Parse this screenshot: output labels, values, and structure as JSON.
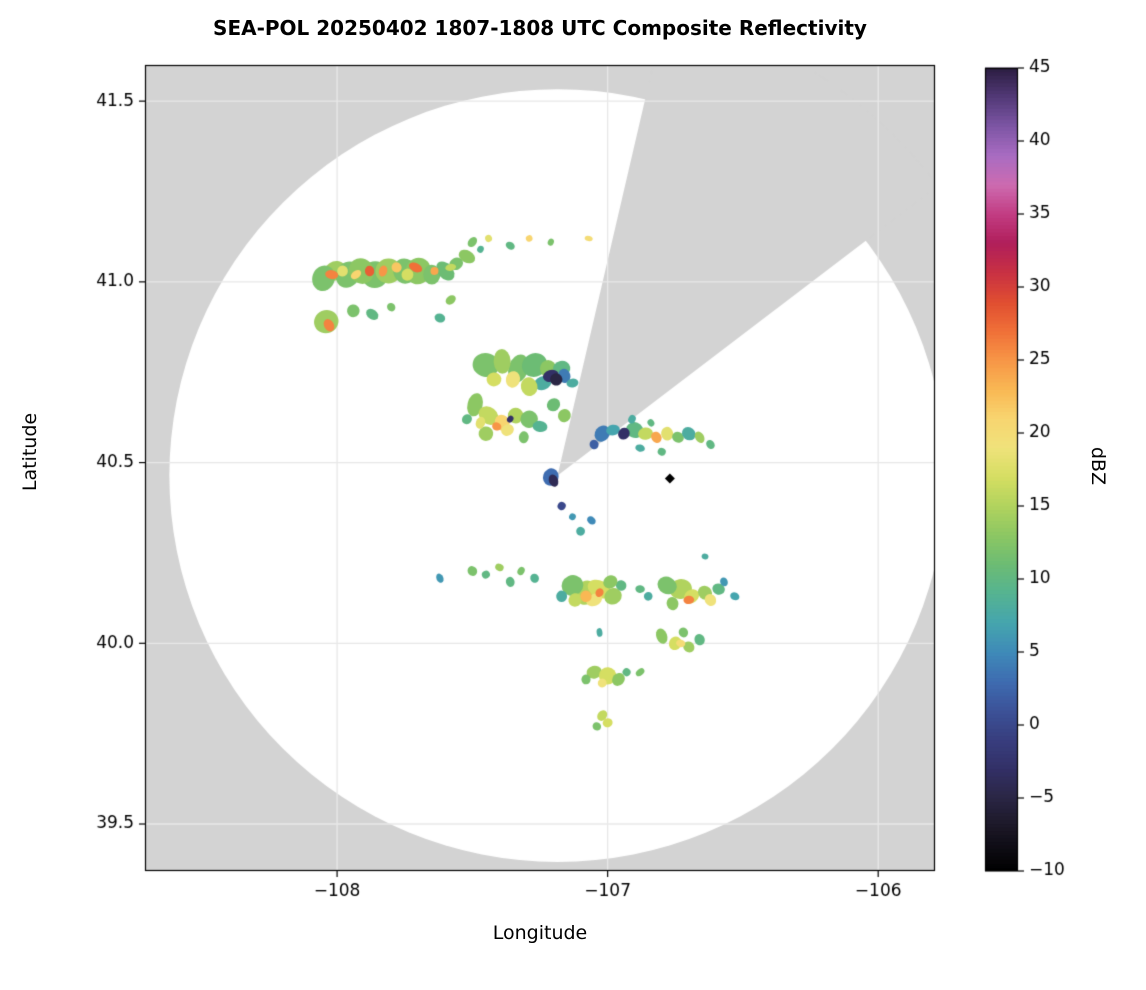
{
  "chart_data": {
    "type": "heatmap",
    "title": "SEA-POL 20250402 1807-1808 UTC Composite Reflectivity",
    "xlabel": "Longitude",
    "ylabel": "Latitude",
    "xlim": [
      -108.71,
      -105.79
    ],
    "ylim": [
      39.37,
      41.6
    ],
    "xticks": [
      -108,
      -107,
      -106
    ],
    "yticks": [
      39.5,
      40.0,
      40.5,
      41.0,
      41.5
    ],
    "grid": true,
    "background_outside_scan": "#d3d3d3",
    "scan_area_color": "#ffffff",
    "grid_color": "#e8e8e8",
    "radar": {
      "center_lon": -107.185,
      "center_lat": 40.464,
      "radius_lon_deg": 1.435,
      "radius_lat_deg": 1.069,
      "blocked_sector_screen_deg": [
        -76.9,
        -37.3
      ]
    },
    "colorbar": {
      "label": "dBZ",
      "min": -10,
      "max": 45,
      "ticks": [
        -10,
        -5,
        0,
        5,
        10,
        15,
        20,
        25,
        30,
        35,
        40,
        45
      ]
    },
    "colormap_stops": [
      [
        -10,
        "#000000"
      ],
      [
        -7,
        "#1b1726"
      ],
      [
        -5,
        "#2a2644"
      ],
      [
        -3,
        "#333066"
      ],
      [
        -1,
        "#383e7e"
      ],
      [
        1,
        "#3c5298"
      ],
      [
        3,
        "#3e6cb0"
      ],
      [
        5,
        "#3f8ab8"
      ],
      [
        7,
        "#45a5ae"
      ],
      [
        9,
        "#55b392"
      ],
      [
        11,
        "#6cbc74"
      ],
      [
        13,
        "#8cc763"
      ],
      [
        15,
        "#b1d35e"
      ],
      [
        17,
        "#d5de62"
      ],
      [
        19,
        "#efe27b"
      ],
      [
        21,
        "#f8d570"
      ],
      [
        23,
        "#f9b854"
      ],
      [
        25,
        "#f79647"
      ],
      [
        27,
        "#f07038"
      ],
      [
        29,
        "#e04e31"
      ],
      [
        31,
        "#c93143"
      ],
      [
        33,
        "#b01f5a"
      ],
      [
        35,
        "#c23c82"
      ],
      [
        37,
        "#cd6bb0"
      ],
      [
        39,
        "#a96cc2"
      ],
      [
        41,
        "#7e56a5"
      ],
      [
        43,
        "#533a78"
      ],
      [
        45,
        "#2c1e42"
      ]
    ],
    "points_format": [
      "lon",
      "lat",
      "dbz",
      "radius_deg"
    ],
    "points": [
      [
        -108.05,
        41.01,
        12,
        0.028
      ],
      [
        -108.01,
        41.03,
        14,
        0.03
      ],
      [
        -107.96,
        41.02,
        12,
        0.028
      ],
      [
        -107.91,
        41.03,
        13,
        0.028
      ],
      [
        -107.86,
        41.02,
        12,
        0.03
      ],
      [
        -107.81,
        41.03,
        14,
        0.03
      ],
      [
        -107.75,
        41.03,
        12,
        0.028
      ],
      [
        -107.7,
        41.03,
        13,
        0.028
      ],
      [
        -107.65,
        41.02,
        12,
        0.026
      ],
      [
        -107.6,
        41.03,
        11,
        0.024
      ],
      [
        -107.56,
        41.05,
        12,
        0.02
      ],
      [
        -107.52,
        41.07,
        13,
        0.018
      ],
      [
        -108.02,
        41.02,
        26,
        0.014
      ],
      [
        -107.93,
        41.02,
        21,
        0.012
      ],
      [
        -107.88,
        41.03,
        28,
        0.016
      ],
      [
        -107.83,
        41.03,
        25,
        0.013
      ],
      [
        -107.78,
        41.04,
        22,
        0.012
      ],
      [
        -107.71,
        41.04,
        27,
        0.015
      ],
      [
        -107.64,
        41.03,
        24,
        0.012
      ],
      [
        -107.98,
        41.03,
        18,
        0.018
      ],
      [
        -107.74,
        41.02,
        17,
        0.014
      ],
      [
        -107.58,
        41.04,
        16,
        0.012
      ],
      [
        -107.5,
        41.11,
        12,
        0.013
      ],
      [
        -107.44,
        41.12,
        18,
        0.011
      ],
      [
        -107.36,
        41.1,
        10,
        0.011
      ],
      [
        -107.29,
        41.12,
        21,
        0.011
      ],
      [
        -107.21,
        41.11,
        12,
        0.01
      ],
      [
        -107.07,
        41.12,
        20,
        0.009
      ],
      [
        -107.47,
        41.09,
        9,
        0.01
      ],
      [
        -108.04,
        40.89,
        14,
        0.026
      ],
      [
        -108.03,
        40.88,
        26,
        0.014
      ],
      [
        -107.94,
        40.92,
        12,
        0.018
      ],
      [
        -107.87,
        40.91,
        10,
        0.016
      ],
      [
        -107.8,
        40.93,
        12,
        0.013
      ],
      [
        -107.58,
        40.95,
        13,
        0.013
      ],
      [
        -107.62,
        40.9,
        9,
        0.011
      ],
      [
        -107.45,
        40.77,
        12,
        0.03
      ],
      [
        -107.39,
        40.78,
        14,
        0.028
      ],
      [
        -107.33,
        40.76,
        12,
        0.032
      ],
      [
        -107.27,
        40.77,
        11,
        0.028
      ],
      [
        -107.22,
        40.76,
        13,
        0.026
      ],
      [
        -107.17,
        40.76,
        10,
        0.022
      ],
      [
        -107.42,
        40.73,
        17,
        0.02
      ],
      [
        -107.35,
        40.73,
        19,
        0.018
      ],
      [
        -107.29,
        40.71,
        16,
        0.02
      ],
      [
        -107.24,
        40.72,
        8,
        0.022
      ],
      [
        -107.21,
        40.74,
        -3,
        0.02
      ],
      [
        -107.19,
        40.73,
        -5,
        0.013
      ],
      [
        -107.16,
        40.74,
        4,
        0.016
      ],
      [
        -107.13,
        40.72,
        8,
        0.013
      ],
      [
        -107.49,
        40.66,
        13,
        0.026
      ],
      [
        -107.44,
        40.63,
        16,
        0.026
      ],
      [
        -107.39,
        40.61,
        21,
        0.02
      ],
      [
        -107.34,
        40.63,
        15,
        0.026
      ],
      [
        -107.29,
        40.62,
        12,
        0.024
      ],
      [
        -107.37,
        40.59,
        19,
        0.018
      ],
      [
        -107.45,
        40.58,
        14,
        0.018
      ],
      [
        -107.31,
        40.57,
        12,
        0.016
      ],
      [
        -107.41,
        40.6,
        25,
        0.011
      ],
      [
        -107.36,
        40.62,
        -3,
        0.01
      ],
      [
        -107.25,
        40.6,
        9,
        0.016
      ],
      [
        -107.2,
        40.66,
        11,
        0.018
      ],
      [
        -107.16,
        40.63,
        13,
        0.015
      ],
      [
        -107.52,
        40.62,
        10,
        0.015
      ],
      [
        -107.47,
        40.61,
        18,
        0.013
      ],
      [
        -107.02,
        40.58,
        4,
        0.018
      ],
      [
        -106.98,
        40.59,
        7,
        0.018
      ],
      [
        -106.94,
        40.58,
        -3,
        0.013
      ],
      [
        -106.9,
        40.59,
        10,
        0.018
      ],
      [
        -106.86,
        40.58,
        16,
        0.018
      ],
      [
        -106.82,
        40.57,
        24,
        0.015
      ],
      [
        -106.78,
        40.58,
        18,
        0.018
      ],
      [
        -106.74,
        40.57,
        12,
        0.018
      ],
      [
        -106.7,
        40.58,
        8,
        0.016
      ],
      [
        -106.66,
        40.57,
        14,
        0.013
      ],
      [
        -106.62,
        40.55,
        10,
        0.011
      ],
      [
        -106.8,
        40.53,
        10,
        0.011
      ],
      [
        -106.88,
        40.54,
        8,
        0.011
      ],
      [
        -106.91,
        40.62,
        8,
        0.011
      ],
      [
        -106.84,
        40.61,
        10,
        0.011
      ],
      [
        -107.05,
        40.55,
        2,
        0.012
      ],
      [
        -107.21,
        40.46,
        3,
        0.02
      ],
      [
        -107.2,
        40.45,
        -4,
        0.013
      ],
      [
        -107.17,
        40.38,
        0,
        0.012
      ],
      [
        -107.13,
        40.35,
        6,
        0.011
      ],
      [
        -107.06,
        40.34,
        5,
        0.01
      ],
      [
        -107.1,
        40.31,
        8,
        0.009
      ],
      [
        -107.62,
        40.18,
        6,
        0.011
      ],
      [
        -107.5,
        40.2,
        12,
        0.011
      ],
      [
        -107.45,
        40.19,
        10,
        0.013
      ],
      [
        -107.4,
        40.21,
        14,
        0.011
      ],
      [
        -107.36,
        40.17,
        10,
        0.011
      ],
      [
        -107.32,
        40.2,
        12,
        0.011
      ],
      [
        -107.27,
        40.18,
        9,
        0.01
      ],
      [
        -107.13,
        40.16,
        12,
        0.024
      ],
      [
        -107.08,
        40.14,
        15,
        0.026
      ],
      [
        -107.03,
        40.15,
        17,
        0.026
      ],
      [
        -106.98,
        40.13,
        14,
        0.024
      ],
      [
        -107.05,
        40.12,
        19,
        0.02
      ],
      [
        -107.03,
        40.14,
        26,
        0.013
      ],
      [
        -107.08,
        40.13,
        23,
        0.012
      ],
      [
        -107.12,
        40.12,
        16,
        0.016
      ],
      [
        -107.17,
        40.13,
        8,
        0.013
      ],
      [
        -106.95,
        40.16,
        10,
        0.016
      ],
      [
        -106.99,
        40.17,
        13,
        0.016
      ],
      [
        -106.78,
        40.16,
        12,
        0.022
      ],
      [
        -106.73,
        40.15,
        15,
        0.026
      ],
      [
        -106.69,
        40.13,
        17,
        0.022
      ],
      [
        -106.64,
        40.14,
        14,
        0.018
      ],
      [
        -106.7,
        40.12,
        26,
        0.014
      ],
      [
        -106.62,
        40.12,
        19,
        0.013
      ],
      [
        -106.59,
        40.15,
        10,
        0.013
      ],
      [
        -106.76,
        40.11,
        13,
        0.016
      ],
      [
        -106.57,
        40.17,
        6,
        0.01
      ],
      [
        -106.88,
        40.15,
        10,
        0.013
      ],
      [
        -106.85,
        40.13,
        8,
        0.011
      ],
      [
        -106.64,
        40.24,
        8,
        0.009
      ],
      [
        -106.53,
        40.13,
        7,
        0.01
      ],
      [
        -106.8,
        40.02,
        13,
        0.018
      ],
      [
        -106.75,
        40.0,
        17,
        0.018
      ],
      [
        -106.7,
        39.99,
        14,
        0.018
      ],
      [
        -106.66,
        40.01,
        10,
        0.013
      ],
      [
        -106.72,
        40.03,
        12,
        0.013
      ],
      [
        -106.73,
        40.0,
        20,
        0.011
      ],
      [
        -107.03,
        40.03,
        8,
        0.009
      ],
      [
        -107.05,
        39.92,
        14,
        0.018
      ],
      [
        -107.0,
        39.91,
        17,
        0.018
      ],
      [
        -106.96,
        39.9,
        13,
        0.016
      ],
      [
        -107.02,
        39.89,
        19,
        0.013
      ],
      [
        -106.93,
        39.92,
        10,
        0.011
      ],
      [
        -107.08,
        39.9,
        12,
        0.011
      ],
      [
        -106.88,
        39.92,
        12,
        0.011
      ],
      [
        -107.02,
        39.8,
        16,
        0.013
      ],
      [
        -107.0,
        39.78,
        17,
        0.011
      ],
      [
        -107.04,
        39.77,
        12,
        0.009
      ]
    ],
    "markers": [
      {
        "lon": -106.77,
        "lat": 40.456,
        "shape": "diamond",
        "color": "#000000"
      }
    ]
  }
}
